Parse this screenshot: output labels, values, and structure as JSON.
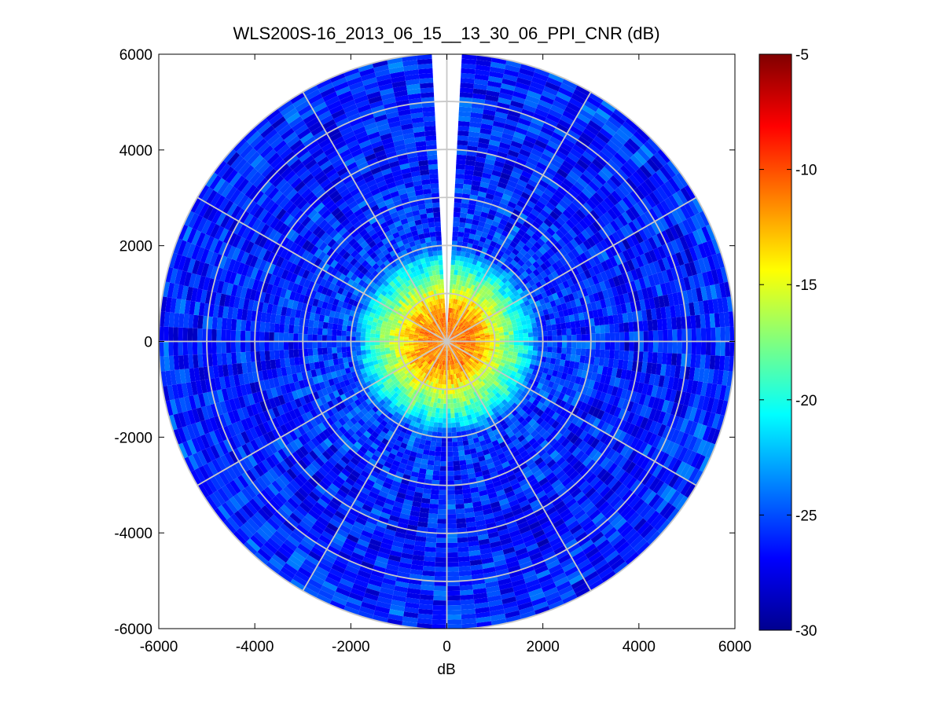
{
  "chart_data": {
    "type": "heatmap",
    "subtype": "polar-ppi",
    "title": "WLS200S-16_2013_06_15__13_30_06_PPI_CNR (dB)",
    "xlabel": "dB",
    "ylabel": "",
    "xlim": [
      -6000,
      6000
    ],
    "ylim": [
      -6000,
      6000
    ],
    "x_ticks": [
      "-6000",
      "-4000",
      "-2000",
      "0",
      "2000",
      "4000",
      "6000"
    ],
    "y_ticks": [
      "6000",
      "4000",
      "2000",
      "0",
      "-2000",
      "-4000",
      "-6000"
    ],
    "x_tick_values": [
      -6000,
      -4000,
      -2000,
      0,
      2000,
      4000,
      6000
    ],
    "y_tick_values": [
      6000,
      4000,
      2000,
      0,
      -2000,
      -4000,
      -6000
    ],
    "colorbar": {
      "colormap": "jet",
      "range": [
        -30,
        -5
      ],
      "ticks": [
        "-5",
        "-10",
        "-15",
        "-20",
        "-25",
        "-30"
      ],
      "tick_values": [
        -5,
        -10,
        -15,
        -20,
        -25,
        -30
      ]
    },
    "polar_grid": {
      "ring_ranges": [
        1000,
        2000,
        3000,
        4000,
        5000,
        6000
      ],
      "spoke_angles_deg": [
        0,
        30,
        60,
        90,
        120,
        150,
        180,
        210,
        240,
        270,
        300,
        330
      ],
      "grid_color": "#c8c8c8"
    },
    "data_gap_azimuth_deg": [
      -4,
      4
    ],
    "cnr_profile": [
      {
        "range": 0,
        "cnr": -11
      },
      {
        "range": 500,
        "cnr": -11.5
      },
      {
        "range": 800,
        "cnr": -13
      },
      {
        "range": 1100,
        "cnr": -16
      },
      {
        "range": 1400,
        "cnr": -18.5
      },
      {
        "range": 1700,
        "cnr": -21
      },
      {
        "range": 2000,
        "cnr": -25.5
      },
      {
        "range": 4000,
        "cnr": -26.5
      },
      {
        "range": 6000,
        "cnr": -26
      }
    ]
  }
}
